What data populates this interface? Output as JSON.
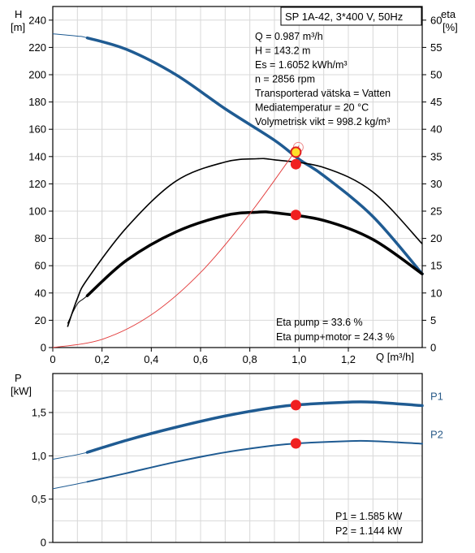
{
  "chart_data": [
    {
      "type": "line",
      "title": "SP 1A-42, 3*400 V, 50Hz",
      "xlabel": "Q [m³/h]",
      "ylabel": "H",
      "ylabel_unit": "[m]",
      "y2label": "eta",
      "y2label_unit": "[%]",
      "xlim": [
        0,
        1.5
      ],
      "ylim": [
        0,
        250
      ],
      "y2lim": [
        0,
        62.5
      ],
      "x_ticks": [
        "0",
        "0,2",
        "0,4",
        "0,6",
        "0,8",
        "1,0",
        "1,2"
      ],
      "x_tick_values": [
        0,
        0.2,
        0.4,
        0.6,
        0.8,
        1.0,
        1.2
      ],
      "y_ticks": [
        "0",
        "20",
        "40",
        "60",
        "80",
        "100",
        "120",
        "140",
        "160",
        "180",
        "200",
        "220",
        "240"
      ],
      "y_tick_values": [
        0,
        20,
        40,
        60,
        80,
        100,
        120,
        140,
        160,
        180,
        200,
        220,
        240
      ],
      "y2_ticks": [
        "0",
        "5",
        "10",
        "15",
        "20",
        "25",
        "30",
        "35",
        "40",
        "45",
        "50",
        "55",
        "60"
      ],
      "y2_tick_values": [
        0,
        5,
        10,
        15,
        20,
        25,
        30,
        35,
        40,
        45,
        50,
        55,
        60
      ],
      "grid": true,
      "series": [
        {
          "role": "head_curve",
          "color": "#1f5b92",
          "x": [
            0.0,
            0.1,
            0.14,
            0.3,
            0.5,
            0.7,
            0.9,
            1.0,
            1.1,
            1.3,
            1.5
          ],
          "y": [
            230,
            228.3,
            227,
            218.5,
            200,
            175,
            152,
            138,
            126,
            96,
            54
          ],
          "bold_range": [
            0.14,
            1.5
          ]
        },
        {
          "role": "eta_pump_motor",
          "color": "#000000",
          "x": [
            0.06,
            0.1,
            0.14,
            0.3,
            0.5,
            0.7,
            0.83,
            0.9,
            1.1,
            1.3,
            1.5
          ],
          "y2": [
            4.4,
            8,
            9.5,
            16,
            21.2,
            24.2,
            24.8,
            24.7,
            23.3,
            19.8,
            13.5
          ]
        },
        {
          "role": "eta_pump",
          "color": "#000000",
          "x": [
            0.06,
            0.1,
            0.14,
            0.3,
            0.5,
            0.7,
            0.83,
            0.9,
            1.1,
            1.3,
            1.5
          ],
          "y2": [
            3.8,
            9,
            12.5,
            22,
            30.5,
            34,
            34.6,
            34.4,
            33,
            28.5,
            19
          ]
        },
        {
          "role": "system_curve",
          "color": "#e23a3a",
          "x": [
            0.0,
            0.2,
            0.4,
            0.6,
            0.8,
            1.0
          ],
          "y": [
            0,
            6,
            24,
            55,
            98,
            148
          ]
        }
      ],
      "points": [
        {
          "role": "duty_point_head",
          "x": 0.987,
          "y": 143.2,
          "fill": "#ffe02a"
        },
        {
          "role": "eta_pump_point",
          "x": 0.987,
          "y2": 33.6,
          "fill": "#f02020"
        },
        {
          "role": "eta_pump_motor_point",
          "x": 0.987,
          "y2": 24.3,
          "fill": "#f02020"
        }
      ],
      "info_lines": [
        "Q = 0.987 m³/h",
        "H = 143.2 m",
        "Es = 1.6052 kWh/m³",
        "n = 2856 rpm",
        "Transporterad vätska = Vatten",
        "Mediatemperatur = 20 °C",
        "Volymetrisk vikt = 998.2 kg/m³"
      ],
      "eta_lines": [
        "Eta pump = 33.6 %",
        "Eta pump+motor = 24.3 %"
      ]
    },
    {
      "type": "line",
      "ylabel": "P",
      "ylabel_unit": "[kW]",
      "xlim": [
        0,
        1.5
      ],
      "ylim": [
        0,
        1.95
      ],
      "y_ticks": [
        "0",
        "0,5",
        "1,0",
        "1,5"
      ],
      "y_tick_values": [
        0,
        0.5,
        1.0,
        1.5
      ],
      "grid": true,
      "series": [
        {
          "name": "P1",
          "color": "#1f5b92",
          "x": [
            0.0,
            0.14,
            0.3,
            0.5,
            0.7,
            0.9,
            1.0,
            1.2,
            1.3,
            1.5
          ],
          "y": [
            0.96,
            1.04,
            1.18,
            1.33,
            1.46,
            1.56,
            1.59,
            1.62,
            1.62,
            1.58
          ],
          "bold_range": [
            0.14,
            1.5
          ]
        },
        {
          "name": "P2",
          "color": "#1f5b92",
          "x": [
            0.0,
            0.14,
            0.3,
            0.5,
            0.7,
            0.9,
            1.0,
            1.2,
            1.3,
            1.5
          ],
          "y": [
            0.62,
            0.7,
            0.8,
            0.93,
            1.04,
            1.12,
            1.145,
            1.17,
            1.17,
            1.14
          ]
        }
      ],
      "points": [
        {
          "role": "p1_point",
          "x": 0.987,
          "y": 1.585,
          "fill": "#f02020"
        },
        {
          "role": "p2_point",
          "x": 0.987,
          "y": 1.144,
          "fill": "#f02020"
        }
      ],
      "info_lines": [
        "P1 = 1.585 kW",
        "P2 = 1.144 kW"
      ]
    }
  ]
}
